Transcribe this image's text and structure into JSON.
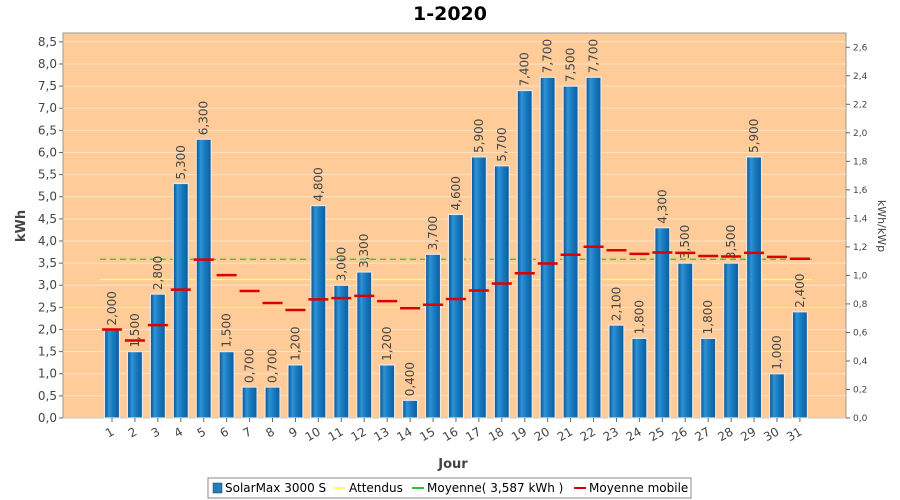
{
  "chart_data": {
    "type": "bar",
    "title": "1-2020",
    "xlabel": "Jour",
    "ylabel": "kWh",
    "y2label": "kWh/kWp",
    "ylim": [
      0,
      8.7
    ],
    "y2lim": [
      0,
      2.7
    ],
    "yticks": [
      "0,0",
      "0,5",
      "1,0",
      "1,5",
      "2,0",
      "2,5",
      "3,0",
      "3,5",
      "4,0",
      "4,5",
      "5,0",
      "5,5",
      "6,0",
      "6,5",
      "7,0",
      "7,5",
      "8,0",
      "8,5"
    ],
    "y2ticks": [
      "0,0",
      "0,2",
      "0,4",
      "0,6",
      "0,8",
      "1,0",
      "1,2",
      "1,4",
      "1,6",
      "1,8",
      "2,0",
      "2,2",
      "2,4",
      "2,6"
    ],
    "categories": [
      "1",
      "2",
      "3",
      "4",
      "5",
      "6",
      "7",
      "8",
      "9",
      "10",
      "11",
      "12",
      "13",
      "14",
      "15",
      "16",
      "17",
      "18",
      "19",
      "20",
      "21",
      "22",
      "23",
      "24",
      "25",
      "26",
      "27",
      "28",
      "29",
      "30",
      "31"
    ],
    "values": [
      2.0,
      1.5,
      2.8,
      5.3,
      6.3,
      1.5,
      0.7,
      0.7,
      1.2,
      4.8,
      3.0,
      3.3,
      1.2,
      0.4,
      3.7,
      4.6,
      5.9,
      5.7,
      7.4,
      7.7,
      7.5,
      7.7,
      2.1,
      1.8,
      4.3,
      3.5,
      1.8,
      3.5,
      5.9,
      1.0,
      2.4
    ],
    "value_labels": [
      "2,000",
      "1,500",
      "2,800",
      "5,300",
      "6,300",
      "1,500",
      "0,700",
      "0,700",
      "1,200",
      "4,800",
      "3,000",
      "3,300",
      "1,200",
      "0,400",
      "3,700",
      "4,600",
      "5,900",
      "5,700",
      "7,400",
      "7,700",
      "7,500",
      "7,700",
      "2,100",
      "1,800",
      "4,300",
      "3,500",
      "1,800",
      "3,500",
      "5,900",
      "1,000",
      "2,400"
    ],
    "moving_average": [
      2.0,
      1.75,
      2.1,
      2.9,
      3.58,
      3.23,
      2.87,
      2.6,
      2.44,
      2.68,
      2.71,
      2.76,
      2.64,
      2.48,
      2.56,
      2.69,
      2.88,
      3.04,
      3.27,
      3.49,
      3.69,
      3.87,
      3.79,
      3.71,
      3.74,
      3.73,
      3.66,
      3.65,
      3.73,
      3.64,
      3.6
    ],
    "expected": 3.13,
    "average": 3.587,
    "series": [
      {
        "name": "SolarMax 3000 S",
        "color": "#1f7fc0"
      },
      {
        "name": "Attendus",
        "color": "#ffff66"
      },
      {
        "name": "Moyenne( 3,587 kWh )",
        "color": "#22cc22"
      },
      {
        "name": "Moyenne mobile",
        "color": "#dd0000"
      }
    ],
    "legend_position": "bottom",
    "grid": true,
    "plot_background": "#ffcc99"
  }
}
